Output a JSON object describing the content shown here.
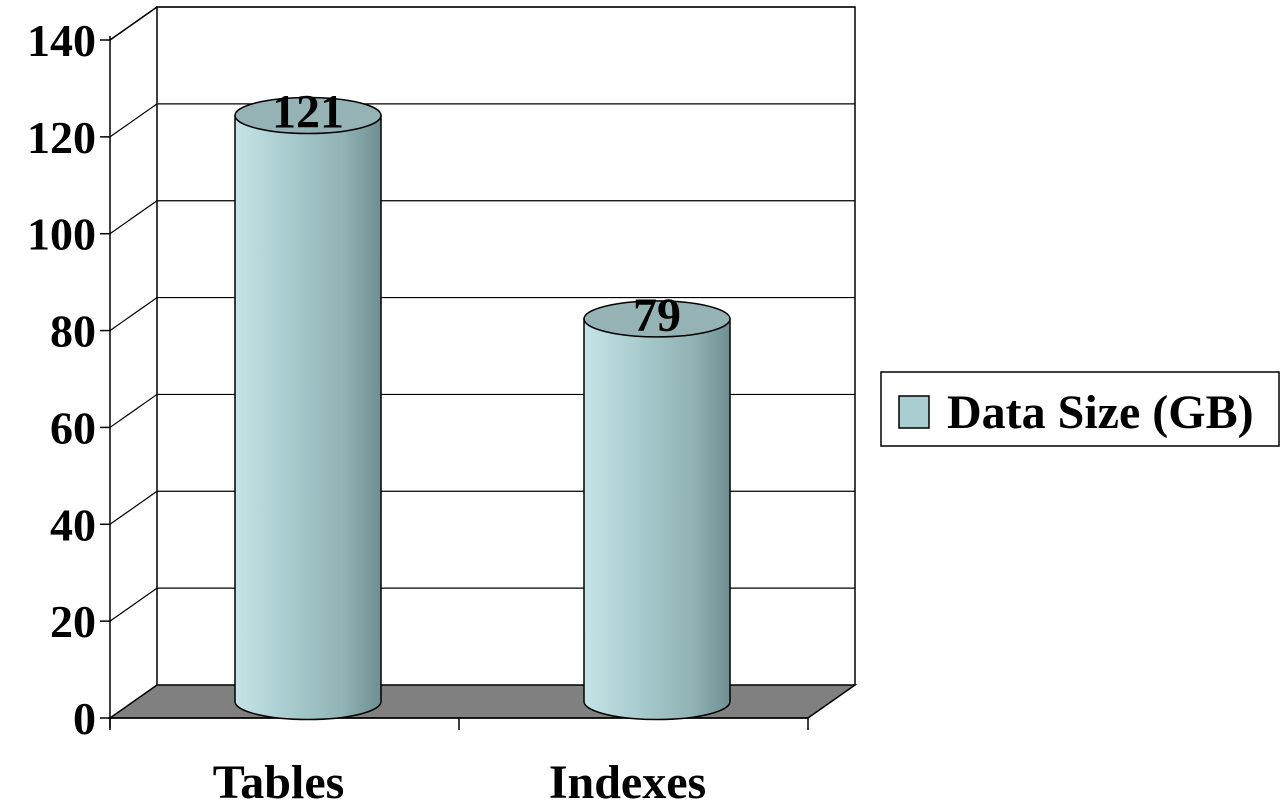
{
  "chart_data": {
    "type": "bar",
    "style": "3d-cylinder",
    "categories": [
      "Tables",
      "Indexes"
    ],
    "series": [
      {
        "name": "Data Size (GB)",
        "values": [
          121,
          79
        ],
        "color": "#a9cdd0"
      }
    ],
    "data_labels": [
      "121",
      "79"
    ],
    "y_ticks": [
      "0",
      "20",
      "40",
      "60",
      "80",
      "100",
      "120",
      "140"
    ],
    "ylim": [
      0,
      140
    ],
    "grid": true,
    "legend_position": "right",
    "title": "",
    "xlabel": "",
    "ylabel": "",
    "colors": {
      "floor": "#808080",
      "cylinder_top": "#95b3b5",
      "gridline": "#000000"
    }
  }
}
